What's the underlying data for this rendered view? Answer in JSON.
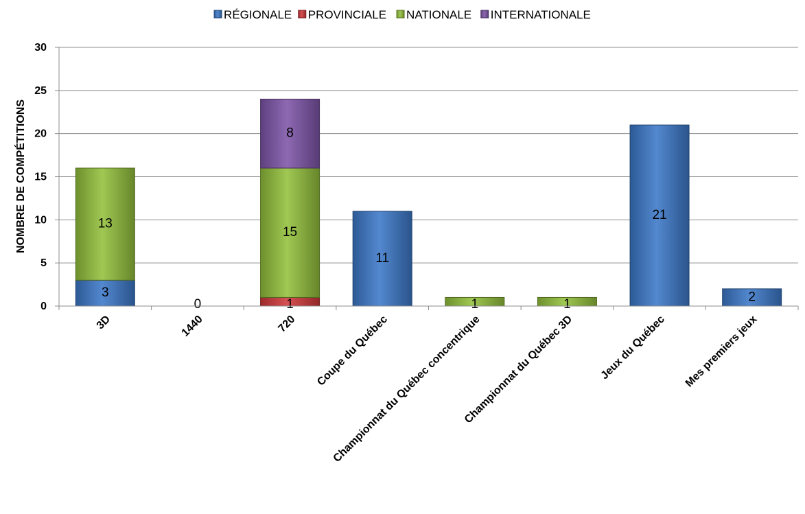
{
  "chart_data": {
    "type": "bar",
    "stacked": true,
    "title": "",
    "xlabel": "",
    "ylabel": "NOMBRE DE COMPÉTITIONS",
    "ylim": [
      0,
      30
    ],
    "yticks": [
      0,
      5,
      10,
      15,
      20,
      25,
      30
    ],
    "grid": true,
    "legend_position": "top",
    "categories": [
      "3D",
      "1440",
      "720",
      "Coupe du Québec",
      "Championnat du Québec concentrique",
      "Championnat du Québec 3D",
      "Jeux du Québec",
      "Mes premiers jeux"
    ],
    "series": [
      {
        "name": "RÉGIONALE",
        "color": "#3c78c8",
        "values": [
          3,
          0,
          0,
          11,
          0,
          0,
          21,
          2
        ]
      },
      {
        "name": "PROVINCIALE",
        "color": "#d0393b",
        "values": [
          0,
          0,
          1,
          0,
          0,
          0,
          0,
          0
        ]
      },
      {
        "name": "NATIONALE",
        "color": "#93c03c",
        "values": [
          13,
          0,
          15,
          0,
          1,
          1,
          0,
          0
        ]
      },
      {
        "name": "INTERNATIONALE",
        "color": "#7d55a8",
        "values": [
          0,
          0,
          8,
          0,
          0,
          0,
          0,
          0
        ]
      }
    ],
    "data_labels": [
      {
        "category": 0,
        "series": 0,
        "text": "3"
      },
      {
        "category": 0,
        "series": 2,
        "text": "13"
      },
      {
        "category": 1,
        "series": 0,
        "text": "0"
      },
      {
        "category": 2,
        "series": 1,
        "text": "1"
      },
      {
        "category": 2,
        "series": 2,
        "text": "15"
      },
      {
        "category": 2,
        "series": 3,
        "text": "8"
      },
      {
        "category": 3,
        "series": 0,
        "text": "11"
      },
      {
        "category": 4,
        "series": 2,
        "text": "1"
      },
      {
        "category": 5,
        "series": 2,
        "text": "1"
      },
      {
        "category": 6,
        "series": 0,
        "text": "21"
      },
      {
        "category": 7,
        "series": 0,
        "text": "2"
      }
    ]
  }
}
